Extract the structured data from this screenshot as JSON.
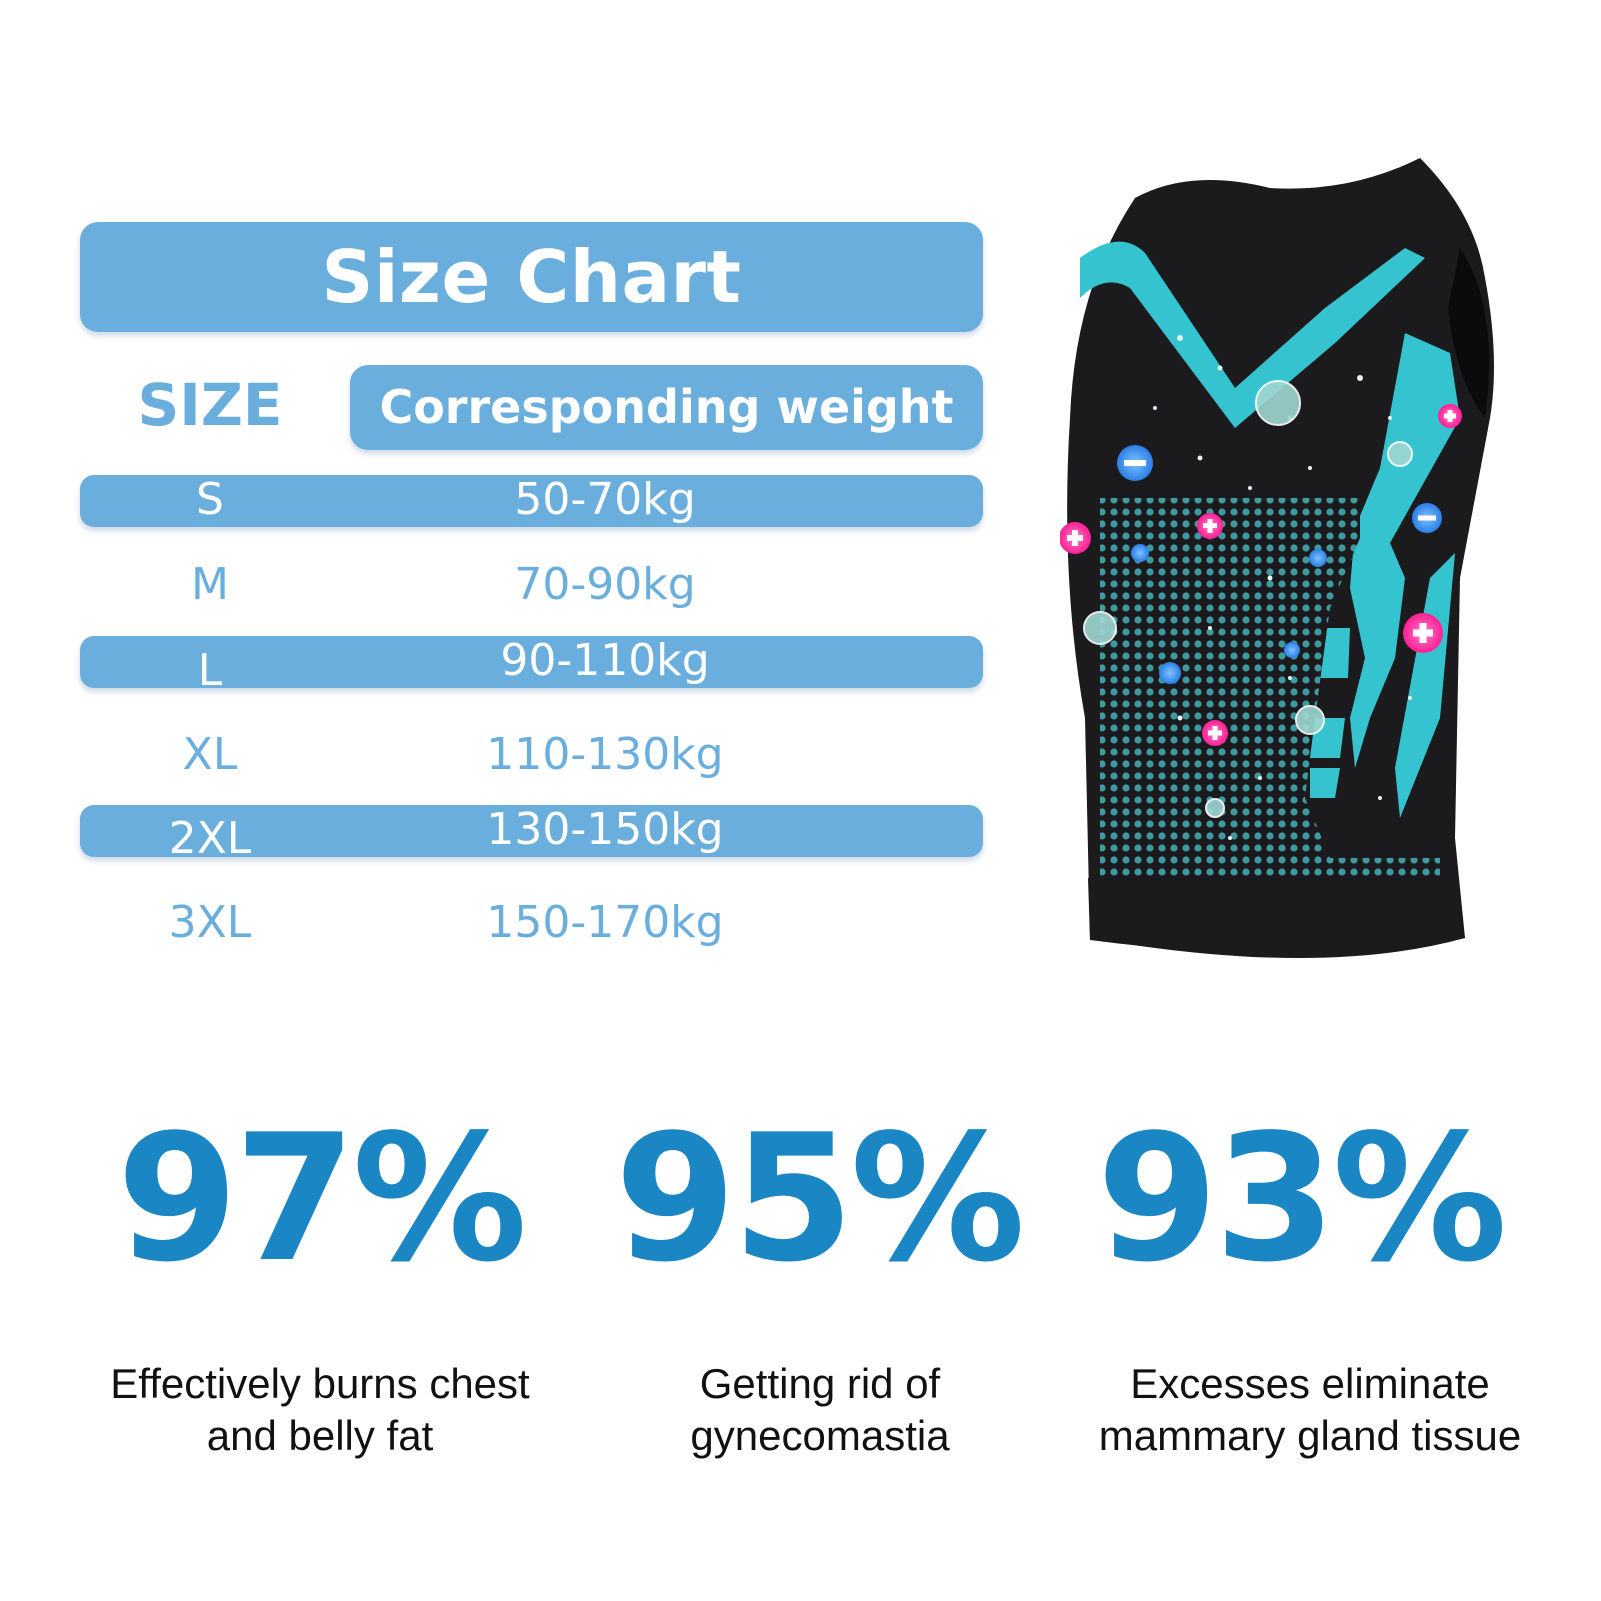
{
  "size_chart": {
    "title": "Size Chart",
    "size_header": "SIZE",
    "weight_header": "Corresponding weight",
    "rows": [
      {
        "size": "S",
        "weight": "50-70kg"
      },
      {
        "size": "M",
        "weight": "70-90kg"
      },
      {
        "size": "L",
        "weight": "90-110kg"
      },
      {
        "size": "XL",
        "weight": "110-130kg"
      },
      {
        "size": "2XL",
        "weight": "130-150kg"
      },
      {
        "size": "3XL",
        "weight": "150-170kg"
      }
    ]
  },
  "stats": [
    {
      "value": "97%",
      "line1": "Effectively burns chest",
      "line2": "and belly fat"
    },
    {
      "value": "95%",
      "line1": "Getting rid of",
      "line2": "gynecomastia"
    },
    {
      "value": "93%",
      "line1": "Excesses eliminate",
      "line2": "mammary gland tissue"
    }
  ],
  "colors": {
    "pill": "#6aaede",
    "stat": "#1a86c4",
    "vest": "#1b1b1d",
    "accent": "#35c4cf",
    "mesh": "#3d9aa0",
    "plus": "#ff3fa8",
    "minus": "#3f8ee8"
  },
  "product_image": {
    "icon": "compression-vest-icon"
  }
}
